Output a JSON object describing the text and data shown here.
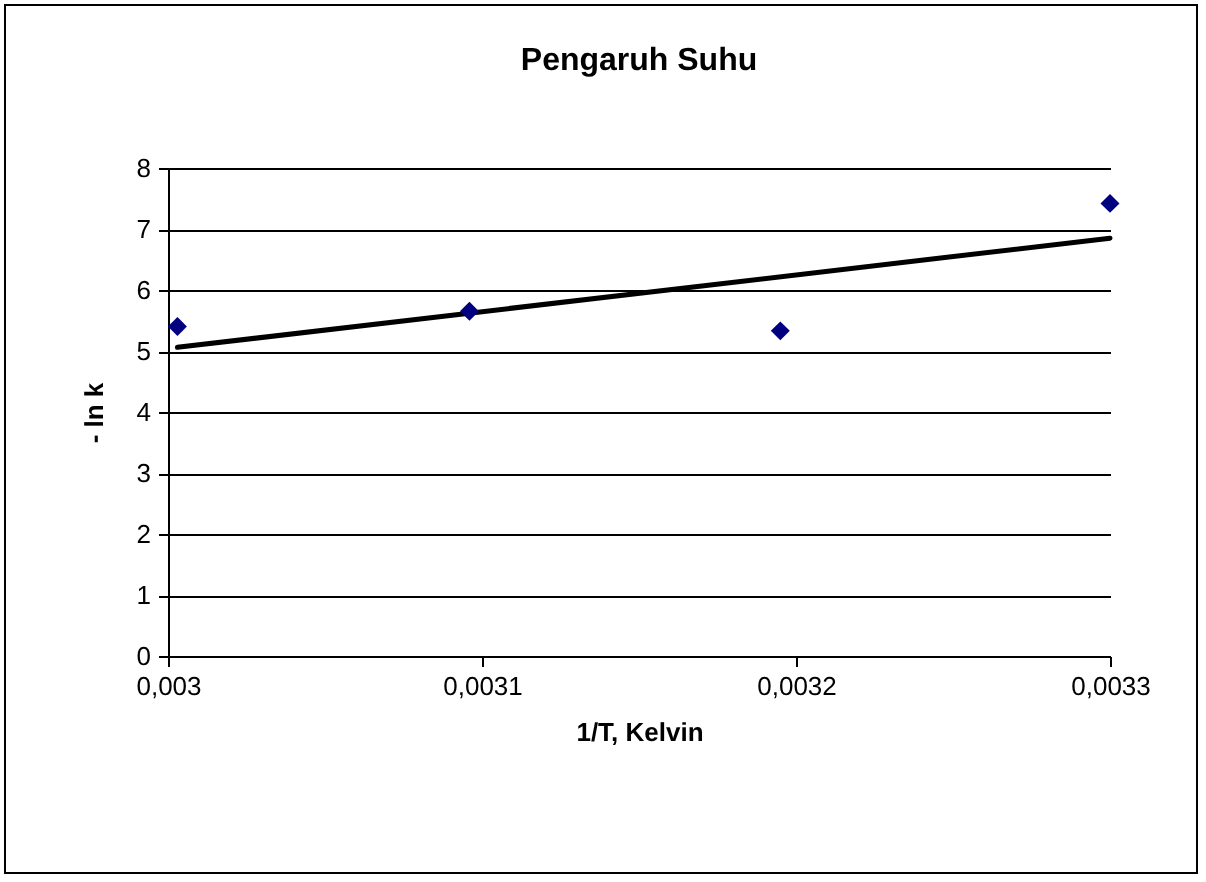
{
  "chart_data": {
    "type": "scatter",
    "title": "Pengaruh Suhu",
    "xlabel": "1/T, Kelvin",
    "ylabel": "- ln k",
    "marker": "diamond",
    "grid": "y",
    "xlim": [
      0.003,
      0.0033
    ],
    "xticks": [
      {
        "value": 0.003,
        "label": "0,003"
      },
      {
        "value": 0.0031,
        "label": "0,0031"
      },
      {
        "value": 0.0032,
        "label": "0,0032"
      },
      {
        "value": 0.0033,
        "label": "0,0033"
      }
    ],
    "ylim": [
      0,
      8
    ],
    "yticks": [
      0,
      1,
      2,
      3,
      4,
      5,
      6,
      7,
      8
    ],
    "series": [
      {
        "color": "#000080",
        "x": [
          0.003003,
          0.003096,
          0.003195,
          0.0033
        ],
        "values": [
          5.4,
          5.65,
          5.33,
          7.42
        ]
      },
      {
        "type": "line",
        "marker": "none",
        "color": "#000000",
        "x": [
          0.003003,
          0.0033
        ],
        "values": [
          5.06,
          6.85
        ]
      }
    ]
  }
}
